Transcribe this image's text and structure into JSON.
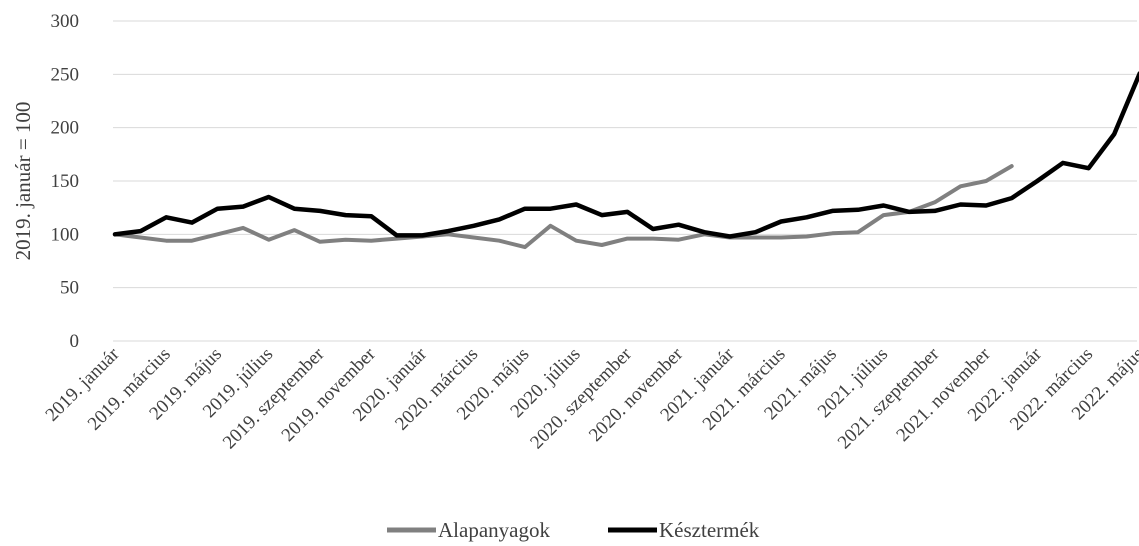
{
  "chart_data": {
    "type": "line",
    "ylabel": "2019. január = 100",
    "ylim": [
      0,
      300
    ],
    "yticks": [
      0,
      50,
      100,
      150,
      200,
      250,
      300
    ],
    "grid": true,
    "legend_position": "bottom-center",
    "x": [
      "2019. január",
      "2019. február",
      "2019. március",
      "2019. április",
      "2019. május",
      "2019. június",
      "2019. július",
      "2019. augusztus",
      "2019. szeptember",
      "2019. október",
      "2019. november",
      "2019. december",
      "2020. január",
      "2020. február",
      "2020. március",
      "2020. április",
      "2020. május",
      "2020. június",
      "2020. július",
      "2020. augusztus",
      "2020. szeptember",
      "2020. október",
      "2020. november",
      "2020. december",
      "2021. január",
      "2021. február",
      "2021. március",
      "2021. április",
      "2021. május",
      "2021. június",
      "2021. július",
      "2021. augusztus",
      "2021. szeptember",
      "2021. október",
      "2021. november",
      "2021. december",
      "2022. január",
      "2022. február",
      "2022. március",
      "2022. április",
      "2022. május",
      "2022. június"
    ],
    "x_tick_labels": [
      "2019. január",
      "2019. március",
      "2019. május",
      "2019. július",
      "2019. szeptember",
      "2019. november",
      "2020. január",
      "2020. március",
      "2020. május",
      "2020. július",
      "2020. szeptember",
      "2020. november",
      "2021. január",
      "2021. március",
      "2021. május",
      "2021. július",
      "2021. szeptember",
      "2021. november",
      "2022. január",
      "2022. március",
      "2022. május"
    ],
    "series": [
      {
        "name": "Alapanyagok",
        "color": "#808080",
        "values": [
          100,
          97,
          94,
          94,
          100,
          106,
          95,
          104,
          93,
          95,
          94,
          96,
          98,
          100,
          97,
          94,
          88,
          108,
          94,
          90,
          96,
          96,
          95,
          100,
          97,
          97,
          97,
          98,
          101,
          102,
          118,
          121,
          130,
          145,
          150,
          164,
          null,
          null,
          null,
          null,
          null,
          null
        ]
      },
      {
        "name": "Késztermék",
        "color": "#000000",
        "values": [
          100,
          103,
          116,
          111,
          124,
          126,
          135,
          124,
          122,
          118,
          117,
          99,
          99,
          103,
          108,
          114,
          124,
          124,
          128,
          118,
          121,
          105,
          109,
          102,
          98,
          102,
          112,
          116,
          122,
          123,
          127,
          121,
          122,
          128,
          127,
          134,
          150,
          167,
          162,
          194,
          251,
          null
        ]
      }
    ]
  },
  "legend": {
    "items": [
      {
        "label": "Alapanyagok",
        "color": "#808080"
      },
      {
        "label": "Késztermék",
        "color": "#000000"
      }
    ]
  }
}
